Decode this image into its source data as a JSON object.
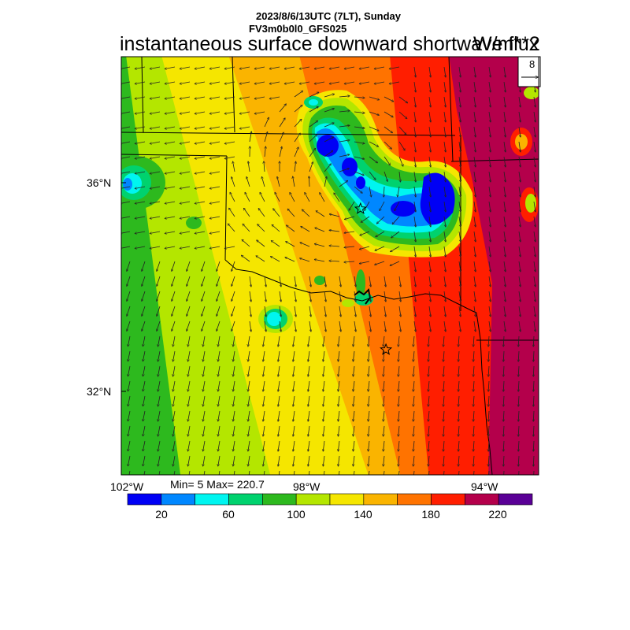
{
  "header": {
    "line1": "2023/8/6/13UTC (7LT), Sunday",
    "line2": "FV3m0b0l0_GFS025",
    "title": "instantaneous surface downward shortwave flux",
    "units": "W/m**2"
  },
  "map": {
    "lon_labels": [
      "102°W",
      "98°W",
      "94°W"
    ],
    "lat_labels": [
      "36°N",
      "32°N"
    ],
    "stats": "Min= 5 Max= 220.7",
    "vector_ref": "8",
    "markers": [
      {
        "name": "star-marker-oklahoma-city",
        "lon": -97.5,
        "lat": 35.5
      },
      {
        "name": "star-marker-dallas",
        "lon": -97.0,
        "lat": 32.8
      }
    ]
  },
  "colorbar": {
    "colors": [
      "#0000f5",
      "#0087ff",
      "#00f5f0",
      "#00d26e",
      "#2db91e",
      "#b4e600",
      "#f5e600",
      "#fab400",
      "#ff7300",
      "#ff1e00",
      "#b4004b",
      "#5a0096"
    ],
    "labels": [
      "20",
      "60",
      "100",
      "140",
      "180",
      "220"
    ]
  }
}
